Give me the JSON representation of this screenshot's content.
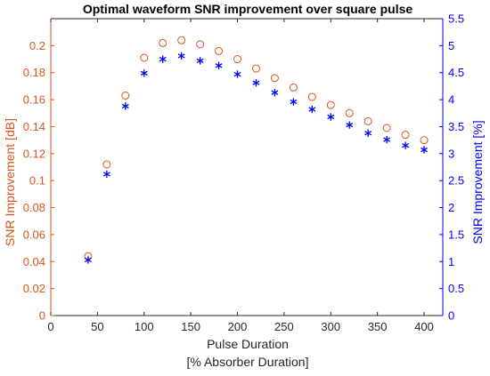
{
  "chart_data": {
    "type": "scatter",
    "title": "Optimal waveform SNR improvement over square pulse",
    "xlabel": "Pulse Duration",
    "xlabel_line2": "[% Absorber Duration]",
    "ylabel_left": "SNR Improvement [dB]",
    "ylabel_right": "SNR Improvement [%]",
    "xlim": [
      0,
      420
    ],
    "ylim_left": [
      0,
      0.22
    ],
    "ylim_right": [
      0,
      5.5
    ],
    "x_ticks": [
      "0",
      "50",
      "100",
      "150",
      "200",
      "250",
      "300",
      "350",
      "400"
    ],
    "y_left_ticks": [
      "0",
      "0.02",
      "0.04",
      "0.06",
      "0.08",
      "0.1",
      "0.12",
      "0.14",
      "0.16",
      "0.18",
      "0.2"
    ],
    "y_right_ticks": [
      "0",
      "0.5",
      "1",
      "1.5",
      "2",
      "2.5",
      "3",
      "3.5",
      "4",
      "4.5",
      "5",
      "5.5"
    ],
    "grid": false,
    "legend": "none",
    "x": [
      40,
      60,
      80,
      100,
      120,
      140,
      160,
      180,
      200,
      220,
      240,
      260,
      280,
      300,
      320,
      340,
      360,
      380,
      400
    ],
    "series": [
      {
        "axis": "left",
        "marker": "circle",
        "color": "#d9541a",
        "values": [
          0.044,
          0.112,
          0.163,
          0.191,
          0.202,
          0.204,
          0.201,
          0.196,
          0.19,
          0.183,
          0.176,
          0.169,
          0.162,
          0.156,
          0.15,
          0.144,
          0.139,
          0.134,
          0.13
        ]
      },
      {
        "axis": "right",
        "marker": "asterisk",
        "color": "#0000ff",
        "values": [
          1.03,
          2.62,
          3.88,
          4.49,
          4.75,
          4.81,
          4.72,
          4.63,
          4.47,
          4.31,
          4.13,
          3.96,
          3.82,
          3.68,
          3.53,
          3.38,
          3.26,
          3.15,
          3.07
        ]
      }
    ],
    "colors": {
      "left_axis": "#d9541a",
      "right_axis": "#0000ff",
      "x_axis": "#262626"
    }
  }
}
